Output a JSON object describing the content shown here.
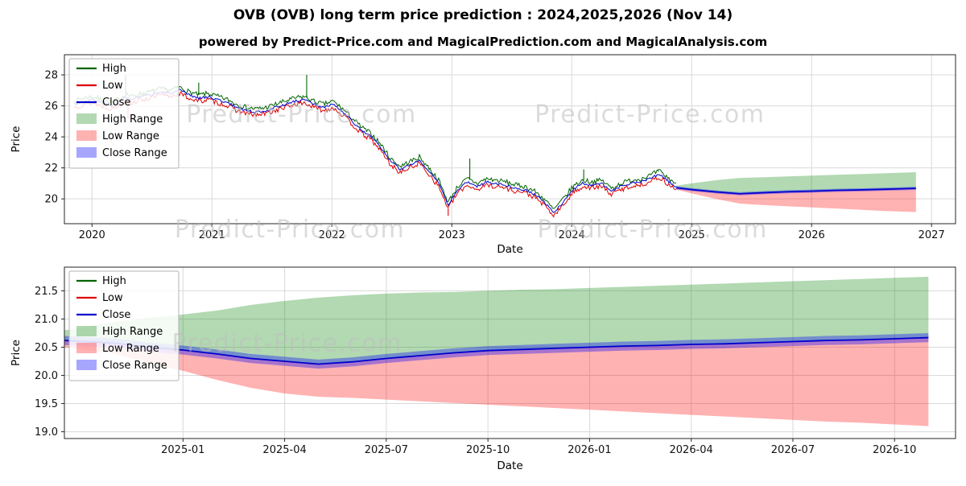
{
  "title": "OVB (OVB) long term price prediction : 2024,2025,2026 (Nov 14)",
  "subtitle": "powered by Predict-Price.com and MagicalPrediction.com and MagicalAnalysis.com",
  "watermark": {
    "text": "Predict-Price.com",
    "color": "#bdbdbd"
  },
  "colors": {
    "high_line": "#006400",
    "low_line": "#dd0000",
    "close_line": "#0000cc",
    "high_range": "rgba(0,128,0,0.3)",
    "low_range": "rgba(255,0,0,0.3)",
    "close_range": "rgba(0,0,255,0.35)"
  },
  "legend": [
    {
      "label": "High",
      "type": "line",
      "color": "#006400"
    },
    {
      "label": "Low",
      "type": "line",
      "color": "#dd0000"
    },
    {
      "label": "Close",
      "type": "line",
      "color": "#0000cc"
    },
    {
      "label": "High Range",
      "type": "patch",
      "color": "rgba(0,128,0,0.3)"
    },
    {
      "label": "Low Range",
      "type": "patch",
      "color": "rgba(255,0,0,0.3)"
    },
    {
      "label": "Close Range",
      "type": "patch",
      "color": "rgba(0,0,255,0.35)"
    }
  ],
  "chart_data": [
    {
      "type": "line",
      "title": "",
      "xlabel": "Date",
      "ylabel": "Price",
      "xlim": [
        2019.77,
        2027.2
      ],
      "ylim": [
        18.4,
        29.3
      ],
      "xticks": [
        2020,
        2021,
        2022,
        2023,
        2024,
        2025,
        2026,
        2027
      ],
      "xtick_labels": [
        "2020",
        "2021",
        "2022",
        "2023",
        "2024",
        "2025",
        "2026",
        "2027"
      ],
      "yticks": [
        20,
        22,
        24,
        26,
        28
      ],
      "ytick_labels": [
        "20",
        "22",
        "24",
        "26",
        "28"
      ],
      "watermarks": [
        [
          0.266,
          0.4
        ],
        [
          0.657,
          0.4
        ],
        [
          0.253,
          1.08
        ],
        [
          0.66,
          1.08
        ]
      ],
      "history": {
        "x": [
          2019.85,
          2019.93,
          2020.0,
          2020.08,
          2020.16,
          2020.24,
          2020.28,
          2020.33,
          2020.41,
          2020.49,
          2020.57,
          2020.65,
          2020.73,
          2020.81,
          2020.89,
          2020.97,
          2021.05,
          2021.13,
          2021.21,
          2021.29,
          2021.37,
          2021.45,
          2021.53,
          2021.61,
          2021.69,
          2021.77,
          2021.85,
          2021.93,
          2022.01,
          2022.09,
          2022.17,
          2022.25,
          2022.33,
          2022.41,
          2022.49,
          2022.57,
          2022.65,
          2022.73,
          2022.81,
          2022.89,
          2022.97,
          2023.05,
          2023.13,
          2023.21,
          2023.29,
          2023.37,
          2023.45,
          2023.53,
          2023.61,
          2023.69,
          2023.77,
          2023.85,
          2023.93,
          2024.01,
          2024.09,
          2024.17,
          2024.25,
          2024.33,
          2024.41,
          2024.49,
          2024.57,
          2024.65,
          2024.73,
          2024.81,
          2024.87
        ],
        "series": [
          {
            "name": "High",
            "color": "#006400",
            "amp": 0.16,
            "seed": 7,
            "values": [
              26.3,
              26.5,
              26.6,
              26.4,
              26.2,
              26.5,
              26.8,
              26.6,
              26.8,
              26.9,
              27.1,
              27.0,
              27.2,
              26.9,
              26.7,
              26.8,
              26.6,
              26.4,
              26.1,
              25.9,
              25.8,
              25.9,
              26.1,
              26.3,
              26.5,
              26.6,
              26.3,
              26.1,
              26.3,
              25.8,
              25.2,
              24.6,
              24.2,
              23.5,
              22.6,
              22.1,
              22.4,
              22.7,
              22.0,
              21.2,
              19.8,
              20.8,
              21.3,
              21.0,
              21.3,
              21.2,
              21.1,
              20.9,
              20.8,
              20.5,
              20.0,
              19.3,
              20.0,
              20.8,
              21.2,
              21.1,
              21.2,
              20.7,
              21.0,
              21.2,
              21.3,
              21.5,
              21.8,
              21.3,
              21.0
            ]
          },
          {
            "name": "Low",
            "color": "#dd0000",
            "amp": 0.16,
            "seed": 13,
            "values": [
              25.9,
              26.1,
              26.2,
              26.0,
              25.8,
              26.1,
              26.4,
              26.2,
              26.4,
              26.5,
              26.7,
              26.6,
              26.8,
              26.5,
              26.3,
              26.4,
              26.2,
              26.0,
              25.7,
              25.5,
              25.4,
              25.5,
              25.7,
              25.9,
              26.1,
              26.2,
              25.9,
              25.7,
              25.9,
              25.4,
              24.8,
              24.2,
              23.8,
              23.1,
              22.2,
              21.7,
              22.0,
              22.3,
              21.6,
              20.8,
              19.4,
              20.4,
              20.9,
              20.6,
              20.9,
              20.8,
              20.7,
              20.5,
              20.4,
              20.1,
              19.6,
              18.9,
              19.6,
              20.4,
              20.8,
              20.7,
              20.8,
              20.3,
              20.6,
              20.8,
              20.9,
              21.1,
              21.4,
              20.9,
              20.6
            ]
          },
          {
            "name": "Close",
            "color": "#0000cc",
            "amp": 0.08,
            "seed": 3,
            "values": [
              26.1,
              26.3,
              26.4,
              26.2,
              26.0,
              26.3,
              26.6,
              26.4,
              26.6,
              26.7,
              26.9,
              26.8,
              27.0,
              26.7,
              26.5,
              26.6,
              26.4,
              26.2,
              25.9,
              25.7,
              25.6,
              25.7,
              25.9,
              26.1,
              26.3,
              26.4,
              26.1,
              25.9,
              26.1,
              25.6,
              25.0,
              24.4,
              24.0,
              23.3,
              22.4,
              21.9,
              22.2,
              22.5,
              21.8,
              21.0,
              19.6,
              20.6,
              21.1,
              20.8,
              21.1,
              21.0,
              20.9,
              20.7,
              20.6,
              20.3,
              19.8,
              19.1,
              19.8,
              20.6,
              21.0,
              20.9,
              21.0,
              20.5,
              20.8,
              21.0,
              21.1,
              21.3,
              21.6,
              21.1,
              20.8
            ]
          }
        ],
        "spikes": [
          {
            "t": 2020.28,
            "v": 28.0,
            "series": "High"
          },
          {
            "t": 2020.3,
            "v": 25.2,
            "series": "Low"
          },
          {
            "t": 2020.89,
            "v": 27.5,
            "series": "High"
          },
          {
            "t": 2021.79,
            "v": 28.0,
            "series": "High"
          },
          {
            "t": 2022.97,
            "v": 18.9,
            "series": "Low"
          },
          {
            "t": 2023.15,
            "v": 22.6,
            "series": "High"
          },
          {
            "t": 2023.85,
            "v": 18.8,
            "series": "Low"
          },
          {
            "t": 2024.1,
            "v": 21.9,
            "series": "High"
          },
          {
            "t": 2024.72,
            "v": 21.9,
            "series": "High"
          }
        ]
      },
      "forecast": {
        "x": [
          2024.87,
          2025.0,
          2025.2,
          2025.4,
          2025.6,
          2025.8,
          2026.0,
          2026.2,
          2026.4,
          2026.6,
          2026.87
        ],
        "close": [
          20.72,
          20.6,
          20.45,
          20.33,
          20.4,
          20.46,
          20.5,
          20.55,
          20.58,
          20.62,
          20.68
        ],
        "high_upper": [
          20.85,
          21.0,
          21.2,
          21.35,
          21.4,
          21.45,
          21.5,
          21.55,
          21.6,
          21.65,
          21.72
        ],
        "low_lower": [
          20.6,
          20.35,
          20.0,
          19.7,
          19.6,
          19.52,
          19.45,
          19.38,
          19.3,
          19.22,
          19.15
        ],
        "close_upper": [
          20.82,
          20.7,
          20.55,
          20.43,
          20.5,
          20.56,
          20.6,
          20.65,
          20.68,
          20.72,
          20.78
        ],
        "close_lower": [
          20.62,
          20.5,
          20.35,
          20.23,
          20.3,
          20.36,
          20.4,
          20.45,
          20.48,
          20.52,
          20.58
        ]
      }
    },
    {
      "type": "line",
      "title": "",
      "xlabel": "Date",
      "ylabel": "Price",
      "xlim": [
        -1.5,
        24.8
      ],
      "ylim": [
        18.88,
        21.92
      ],
      "xticks": [
        2,
        5,
        8,
        11,
        14,
        17,
        20,
        23
      ],
      "xtick_labels": [
        "2025-01",
        "2025-04",
        "2025-07",
        "2025-10",
        "2026-01",
        "2026-04",
        "2026-07",
        "2026-10"
      ],
      "yticks": [
        19.0,
        19.5,
        20.0,
        20.5,
        21.0,
        21.5
      ],
      "ytick_labels": [
        "19.0",
        "19.5",
        "20.0",
        "20.5",
        "21.0",
        "21.5"
      ],
      "watermarks": [
        [
          0.25,
          0.49
        ]
      ],
      "forecast": {
        "x": [
          -1.5,
          0,
          1,
          2,
          3,
          4,
          5,
          6,
          7,
          8,
          9,
          10,
          11,
          12,
          13,
          14,
          15,
          16,
          17,
          18,
          19,
          20,
          21,
          22,
          23,
          24
        ],
        "close": [
          20.62,
          20.57,
          20.5,
          20.45,
          20.38,
          20.3,
          20.25,
          20.2,
          20.24,
          20.3,
          20.35,
          20.4,
          20.44,
          20.46,
          20.48,
          20.5,
          20.52,
          20.53,
          20.55,
          20.56,
          20.58,
          20.6,
          20.62,
          20.63,
          20.65,
          20.67
        ],
        "high_upper": [
          20.8,
          20.95,
          21.02,
          21.08,
          21.15,
          21.25,
          21.32,
          21.38,
          21.42,
          21.45,
          21.47,
          21.48,
          21.5,
          21.52,
          21.53,
          21.55,
          21.57,
          21.59,
          21.61,
          21.63,
          21.65,
          21.67,
          21.69,
          21.71,
          21.73,
          21.75
        ],
        "low_lower": [
          20.5,
          20.38,
          20.22,
          20.08,
          19.92,
          19.78,
          19.68,
          19.62,
          19.6,
          19.57,
          19.54,
          19.51,
          19.48,
          19.45,
          19.42,
          19.39,
          19.36,
          19.33,
          19.3,
          19.27,
          19.24,
          19.21,
          19.18,
          19.16,
          19.13,
          19.1
        ],
        "close_upper": [
          20.7,
          20.65,
          20.58,
          20.53,
          20.46,
          20.38,
          20.33,
          20.28,
          20.32,
          20.38,
          20.43,
          20.48,
          20.52,
          20.54,
          20.56,
          20.58,
          20.6,
          20.61,
          20.63,
          20.64,
          20.66,
          20.68,
          20.7,
          20.71,
          20.73,
          20.75
        ],
        "close_lower": [
          20.54,
          20.49,
          20.42,
          20.37,
          20.3,
          20.22,
          20.17,
          20.12,
          20.16,
          20.22,
          20.27,
          20.32,
          20.36,
          20.38,
          20.4,
          20.42,
          20.44,
          20.45,
          20.47,
          20.48,
          20.5,
          20.52,
          20.54,
          20.55,
          20.57,
          20.59
        ]
      }
    }
  ]
}
